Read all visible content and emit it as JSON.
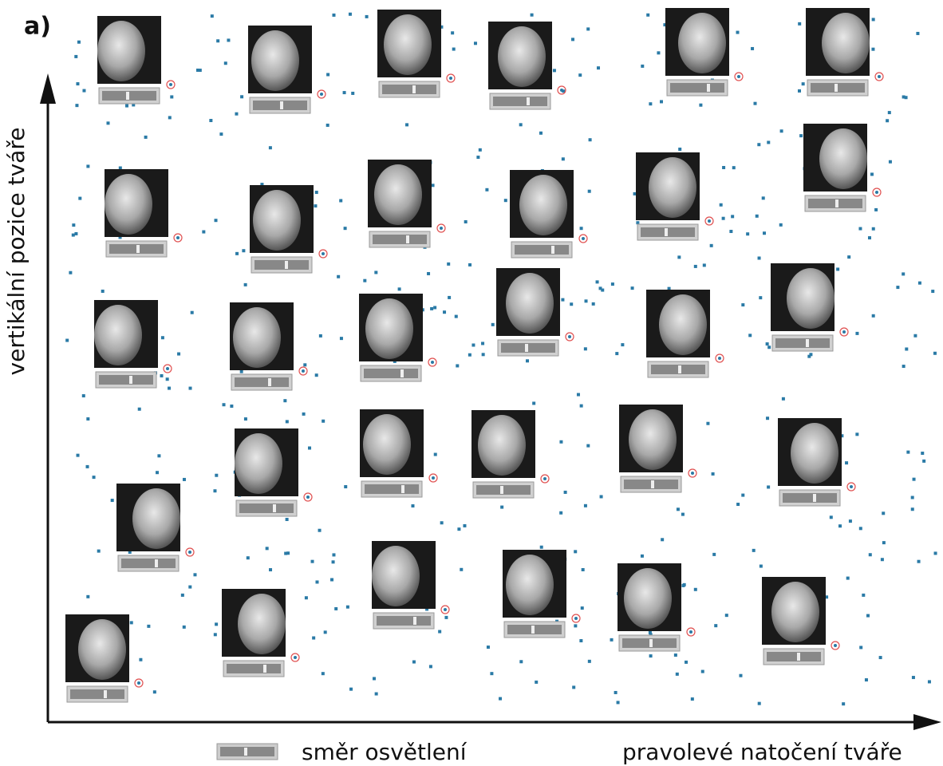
{
  "panel_label": "a)",
  "y_axis_label": "vertikální pozice tváře",
  "x_axis_label": "pravolevé natočení tváře",
  "legend": {
    "label": "směr osvětlení"
  }
}
